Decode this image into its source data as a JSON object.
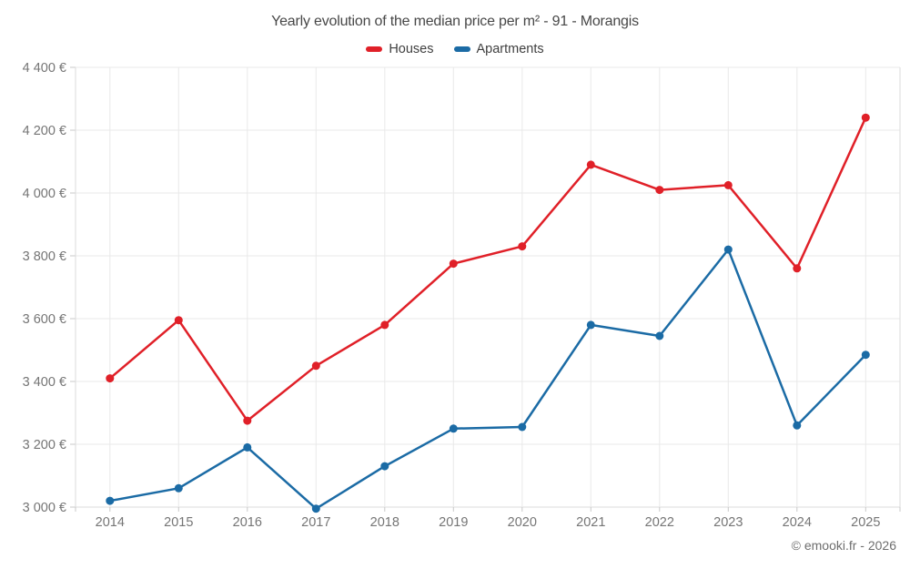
{
  "header": {
    "title": "Yearly evolution of the median price per m² - 91 - Morangis"
  },
  "watermark": "© emooki.fr - 2026",
  "colors": {
    "houses": "#e02028",
    "apartments": "#1b6ba5",
    "grid_line": "#e9e9e9",
    "axis_edge_line": "#dbdbdb",
    "tick_mark": "#c9c9c9",
    "axis_label_text": "#757575",
    "title_text": "#474747",
    "watermark_text": "#6e6e6e",
    "background": "#ffffff"
  },
  "chart_data": {
    "type": "line",
    "title": "Yearly evolution of the median price per m² - 91 - Morangis",
    "xlabel": "",
    "ylabel": "",
    "categories": [
      "2014",
      "2015",
      "2016",
      "2017",
      "2018",
      "2019",
      "2020",
      "2021",
      "2022",
      "2023",
      "2024",
      "2025"
    ],
    "series": [
      {
        "name": "Houses",
        "color": "#e02028",
        "values": [
          3410,
          3595,
          3275,
          3450,
          3580,
          3775,
          3830,
          4090,
          4010,
          4025,
          3760,
          4240
        ]
      },
      {
        "name": "Apartments",
        "color": "#1b6ba5",
        "values": [
          3020,
          3060,
          3190,
          2995,
          3130,
          3250,
          3255,
          3580,
          3545,
          3820,
          3260,
          3485
        ]
      }
    ],
    "ylim": [
      3000,
      4400
    ],
    "y_tick_step": 200,
    "y_tick_labels": [
      "3 000 €",
      "3 200 €",
      "3 400 €",
      "3 600 €",
      "3 800 €",
      "4 000 €",
      "4 200 €",
      "4 400 €"
    ],
    "grid": true,
    "legend_position": "top",
    "marker": "circle",
    "currency_suffix": "€"
  }
}
